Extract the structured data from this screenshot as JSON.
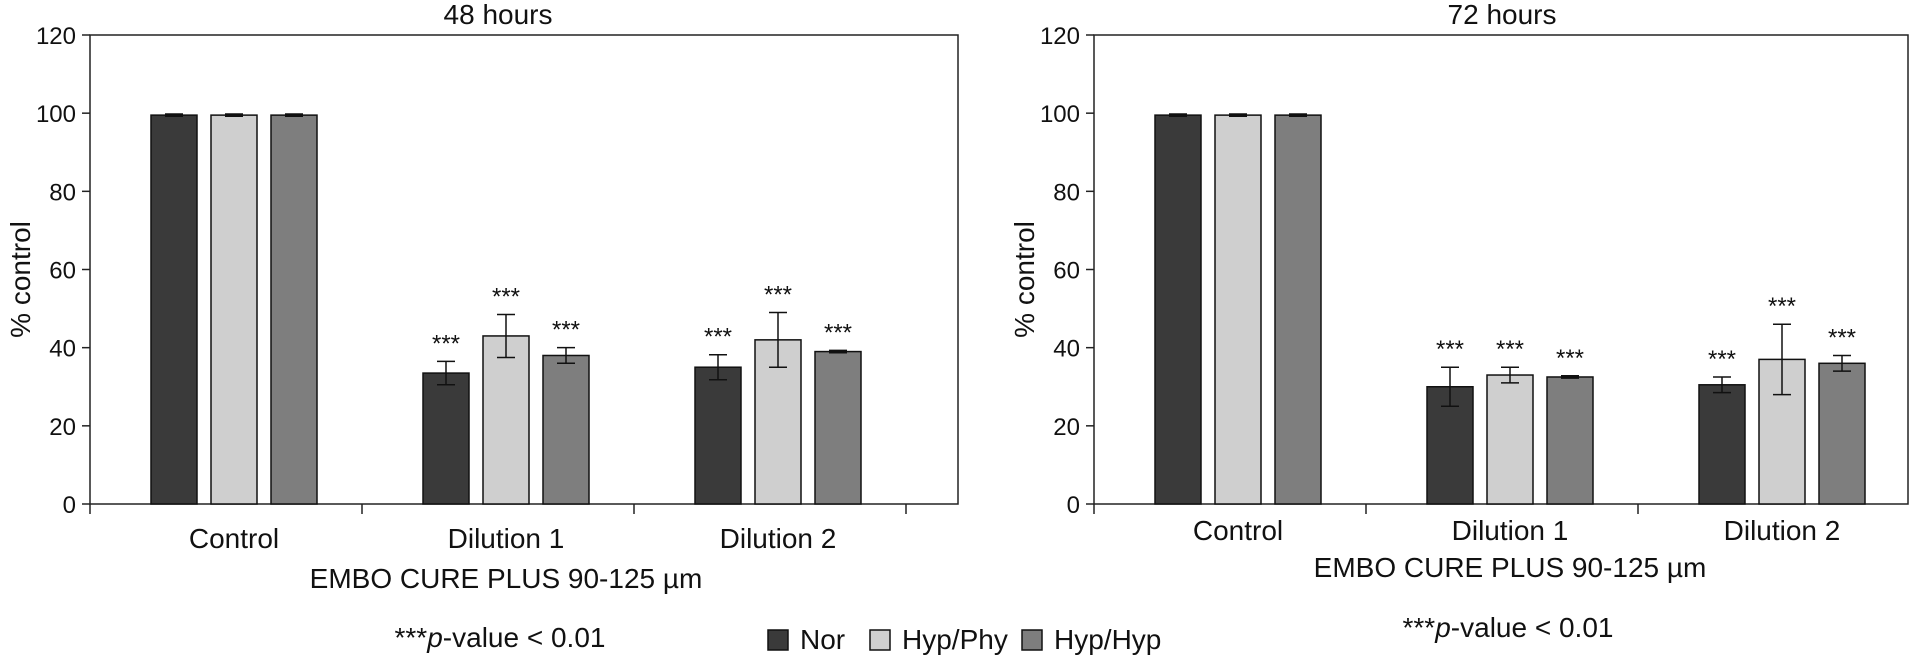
{
  "chart_data": [
    {
      "type": "bar",
      "title": "48 hours",
      "ylabel": "% control",
      "xlabel": "EMBO CURE PLUS 90-125 µm",
      "ylim": [
        0,
        120
      ],
      "yticks": [
        0,
        20,
        40,
        60,
        80,
        100,
        120
      ],
      "categories": [
        "Control",
        "Dilution 1",
        "Dilution 2"
      ],
      "series": [
        {
          "name": "Nor",
          "values": [
            99.5,
            33.5,
            35
          ],
          "errors": [
            0.3,
            3,
            3.2
          ],
          "significance": [
            "",
            "***",
            "***"
          ]
        },
        {
          "name": "Hyp/Phy",
          "values": [
            99.5,
            43,
            42
          ],
          "errors": [
            0.3,
            5.5,
            7
          ],
          "significance": [
            "",
            "***",
            "***"
          ]
        },
        {
          "name": "Hyp/Hyp",
          "values": [
            99.5,
            38,
            39
          ],
          "errors": [
            0.3,
            2,
            0.3
          ],
          "significance": [
            "",
            "***",
            "***"
          ]
        }
      ],
      "note": "***p-value < 0.01"
    },
    {
      "type": "bar",
      "title": "72 hours",
      "ylabel": "% control",
      "xlabel": "EMBO CURE PLUS 90-125 µm",
      "ylim": [
        0,
        120
      ],
      "yticks": [
        0,
        20,
        40,
        60,
        80,
        100,
        120
      ],
      "categories": [
        "Control",
        "Dilution 1",
        "Dilution 2"
      ],
      "series": [
        {
          "name": "Nor",
          "values": [
            99.5,
            30,
            30.5
          ],
          "errors": [
            0.3,
            5,
            2
          ],
          "significance": [
            "",
            "***",
            "***"
          ]
        },
        {
          "name": "Hyp/Phy",
          "values": [
            99.5,
            33,
            37
          ],
          "errors": [
            0.3,
            2,
            9
          ],
          "significance": [
            "",
            "***",
            "***"
          ]
        },
        {
          "name": "Hyp/Hyp",
          "values": [
            99.5,
            32.5,
            36
          ],
          "errors": [
            0.3,
            0.3,
            2
          ],
          "significance": [
            "",
            "***",
            "***"
          ]
        }
      ],
      "note": "***p-value < 0.01"
    }
  ],
  "legend": {
    "placement": "bottom-center",
    "items": [
      {
        "name": "Nor",
        "color": "#3a3a3a"
      },
      {
        "name": "Hyp/Phy",
        "color": "#cfcfcf"
      },
      {
        "name": "Hyp/Hyp",
        "color": "#7e7e7e"
      }
    ]
  },
  "colors": {
    "Nor": "#3a3a3a",
    "Hyp/Phy": "#cfcfcf",
    "Hyp/Hyp": "#7e7e7e",
    "axis": "#222222"
  }
}
